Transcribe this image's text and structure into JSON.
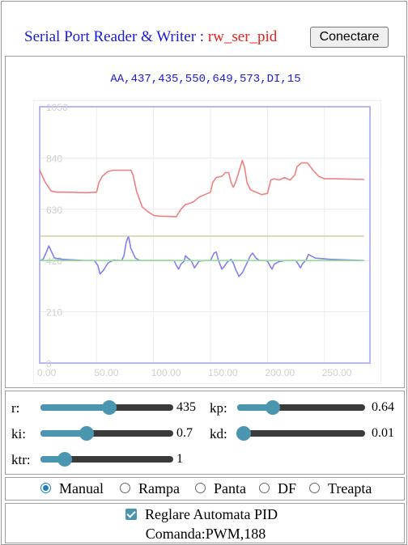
{
  "header": {
    "title_prefix": "Serial Port Reader & Writer : ",
    "title_name": "rw_ser_pid",
    "connect_label": "Conectare"
  },
  "serial_line": "AA,437,435,550,649,573,DI,15",
  "colors": {
    "title_blue": "#1a1adb",
    "title_red": "#e8201a",
    "slider_accent": "#4a96b0",
    "series_red": "#f08080",
    "series_blue": "#8080f0",
    "series_green": "#90e090",
    "series_olive": "#d0d0a0"
  },
  "chart_data": {
    "type": "line",
    "xlim": [
      0,
      290
    ],
    "ylim": [
      0,
      1050
    ],
    "x_ticks": [
      "0.00",
      "50.00",
      "100.00",
      "150.00",
      "200.00",
      "250.00"
    ],
    "y_ticks": [
      "0",
      "210",
      "420",
      "630",
      "840",
      "1050"
    ],
    "grid": true,
    "series": [
      {
        "color": "#f08080",
        "points": [
          [
            0,
            790
          ],
          [
            2,
            770
          ],
          [
            5,
            740
          ],
          [
            10,
            705
          ],
          [
            15,
            700
          ],
          [
            25,
            700
          ],
          [
            40,
            698
          ],
          [
            50,
            700
          ],
          [
            52,
            740
          ],
          [
            55,
            765
          ],
          [
            60,
            785
          ],
          [
            65,
            790
          ],
          [
            80,
            790
          ],
          [
            82,
            770
          ],
          [
            85,
            705
          ],
          [
            90,
            640
          ],
          [
            95,
            620
          ],
          [
            100,
            605
          ],
          [
            105,
            602
          ],
          [
            120,
            600
          ],
          [
            122,
            615
          ],
          [
            124,
            630
          ],
          [
            126,
            640
          ],
          [
            128,
            650
          ],
          [
            130,
            652
          ],
          [
            135,
            660
          ],
          [
            140,
            680
          ],
          [
            145,
            690
          ],
          [
            150,
            700
          ],
          [
            152,
            740
          ],
          [
            155,
            760
          ],
          [
            160,
            765
          ],
          [
            163,
            780
          ],
          [
            166,
            780
          ],
          [
            168,
            740
          ],
          [
            170,
            720
          ],
          [
            172,
            740
          ],
          [
            176,
            800
          ],
          [
            178,
            830
          ],
          [
            180,
            800
          ],
          [
            182,
            740
          ],
          [
            185,
            710
          ],
          [
            190,
            700
          ],
          [
            195,
            690
          ],
          [
            200,
            695
          ],
          [
            203,
            750
          ],
          [
            206,
            755
          ],
          [
            210,
            750
          ],
          [
            215,
            760
          ],
          [
            220,
            750
          ],
          [
            224,
            770
          ],
          [
            226,
            805
          ],
          [
            230,
            820
          ],
          [
            235,
            820
          ],
          [
            240,
            790
          ],
          [
            245,
            765
          ],
          [
            250,
            755
          ],
          [
            260,
            755
          ],
          [
            285,
            752
          ]
        ]
      },
      {
        "color": "#8080f0",
        "points": [
          [
            0,
            420
          ],
          [
            3,
            425
          ],
          [
            6,
            455
          ],
          [
            8,
            480
          ],
          [
            10,
            460
          ],
          [
            13,
            430
          ],
          [
            20,
            425
          ],
          [
            40,
            420
          ],
          [
            48,
            420
          ],
          [
            51,
            400
          ],
          [
            53,
            365
          ],
          [
            56,
            380
          ],
          [
            60,
            410
          ],
          [
            65,
            422
          ],
          [
            70,
            420
          ],
          [
            72,
            420
          ],
          [
            74,
            440
          ],
          [
            76,
            495
          ],
          [
            78,
            520
          ],
          [
            80,
            470
          ],
          [
            84,
            430
          ],
          [
            88,
            420
          ],
          [
            95,
            420
          ],
          [
            118,
            420
          ],
          [
            120,
            400
          ],
          [
            122,
            385
          ],
          [
            124,
            405
          ],
          [
            127,
            418
          ],
          [
            128,
            440
          ],
          [
            130,
            430
          ],
          [
            133,
            420
          ],
          [
            135,
            400
          ],
          [
            136,
            390
          ],
          [
            140,
            418
          ],
          [
            145,
            420
          ],
          [
            150,
            420
          ],
          [
            153,
            450
          ],
          [
            155,
            455
          ],
          [
            157,
            420
          ],
          [
            160,
            385
          ],
          [
            162,
            395
          ],
          [
            165,
            415
          ],
          [
            168,
            425
          ],
          [
            170,
            410
          ],
          [
            172,
            385
          ],
          [
            175,
            355
          ],
          [
            178,
            370
          ],
          [
            182,
            410
          ],
          [
            185,
            440
          ],
          [
            187,
            450
          ],
          [
            190,
            430
          ],
          [
            193,
            420
          ],
          [
            198,
            420
          ],
          [
            200,
            418
          ],
          [
            202,
            400
          ],
          [
            204,
            385
          ],
          [
            206,
            405
          ],
          [
            210,
            415
          ],
          [
            215,
            420
          ],
          [
            225,
            420
          ],
          [
            227,
            405
          ],
          [
            229,
            390
          ],
          [
            231,
            408
          ],
          [
            234,
            422
          ],
          [
            236,
            445
          ],
          [
            238,
            440
          ],
          [
            242,
            430
          ],
          [
            255,
            425
          ],
          [
            285,
            420
          ]
        ]
      },
      {
        "color": "#90e090",
        "points": [
          [
            0,
            420
          ],
          [
            285,
            420
          ]
        ]
      },
      {
        "color": "#d0d0a0",
        "points": [
          [
            0,
            520
          ],
          [
            285,
            520
          ]
        ]
      }
    ]
  },
  "sliders": [
    {
      "label": "r:",
      "value": "435",
      "fraction": 0.52
    },
    {
      "label": "kp:",
      "value": "0.64",
      "fraction": 0.28
    },
    {
      "label": "ki:",
      "value": "0.7",
      "fraction": 0.35
    },
    {
      "label": "kd:",
      "value": "0.01",
      "fraction": 0.05
    },
    {
      "label": "ktr:",
      "value": "1",
      "fraction": 0.18
    }
  ],
  "modes": [
    {
      "label": "Manual",
      "selected": true
    },
    {
      "label": "Rampa",
      "selected": false
    },
    {
      "label": "Panta",
      "selected": false
    },
    {
      "label": "DF",
      "selected": false
    },
    {
      "label": "Treapta",
      "selected": false
    }
  ],
  "pid": {
    "label": "Reglare Automata PID",
    "checked": true,
    "command": "Comanda:PWM,188"
  }
}
